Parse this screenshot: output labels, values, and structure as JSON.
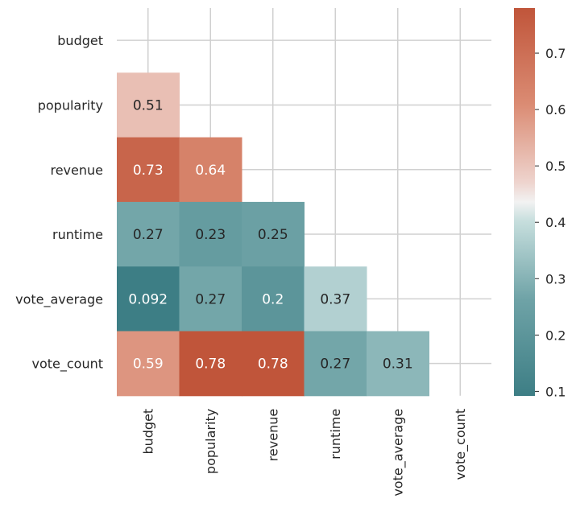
{
  "chart_data": {
    "type": "heatmap",
    "title": "",
    "xlabel": "",
    "ylabel": "",
    "variables": [
      "budget",
      "popularity",
      "revenue",
      "runtime",
      "vote_average",
      "vote_count"
    ],
    "mask": "upper-triangle-including-diagonal",
    "cells": [
      {
        "row": "popularity",
        "col": "budget",
        "value": 0.51,
        "label": "0.51"
      },
      {
        "row": "revenue",
        "col": "budget",
        "value": 0.73,
        "label": "0.73"
      },
      {
        "row": "revenue",
        "col": "popularity",
        "value": 0.64,
        "label": "0.64"
      },
      {
        "row": "runtime",
        "col": "budget",
        "value": 0.27,
        "label": "0.27"
      },
      {
        "row": "runtime",
        "col": "popularity",
        "value": 0.23,
        "label": "0.23"
      },
      {
        "row": "runtime",
        "col": "revenue",
        "value": 0.25,
        "label": "0.25"
      },
      {
        "row": "vote_average",
        "col": "budget",
        "value": 0.092,
        "label": "0.092"
      },
      {
        "row": "vote_average",
        "col": "popularity",
        "value": 0.27,
        "label": "0.27"
      },
      {
        "row": "vote_average",
        "col": "revenue",
        "value": 0.2,
        "label": "0.2"
      },
      {
        "row": "vote_average",
        "col": "runtime",
        "value": 0.37,
        "label": "0.37"
      },
      {
        "row": "vote_count",
        "col": "budget",
        "value": 0.59,
        "label": "0.59"
      },
      {
        "row": "vote_count",
        "col": "popularity",
        "value": 0.78,
        "label": "0.78"
      },
      {
        "row": "vote_count",
        "col": "revenue",
        "value": 0.78,
        "label": "0.78"
      },
      {
        "row": "vote_count",
        "col": "runtime",
        "value": 0.27,
        "label": "0.27"
      },
      {
        "row": "vote_count",
        "col": "vote_average",
        "value": 0.31,
        "label": "0.31"
      }
    ],
    "colorbar": {
      "range": [
        0.092,
        0.78
      ],
      "ticks": [
        0.1,
        0.2,
        0.3,
        0.4,
        0.5,
        0.6,
        0.7
      ],
      "tick_labels": [
        "0.1",
        "0.2",
        "0.3",
        "0.4",
        "0.5",
        "0.6",
        "0.7"
      ],
      "colormap": "diverging teal-white-red",
      "colors": {
        "low": "#3d7e85",
        "mid": "#f2f2f2",
        "high": "#c0553a"
      }
    },
    "grid": true
  }
}
